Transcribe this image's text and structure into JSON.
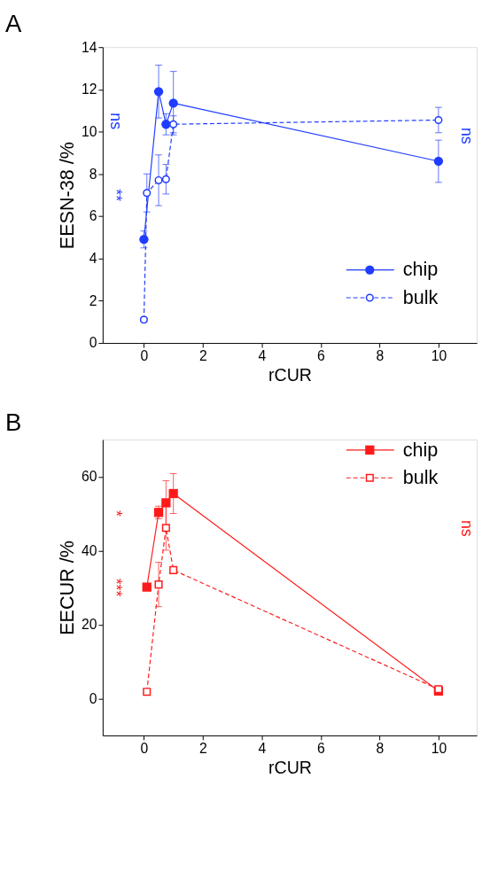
{
  "chart_data": [
    {
      "type": "line",
      "title": "A",
      "xlabel": "rCUR",
      "ylabel": "EESN-38 /%",
      "xlim": [
        -1.4,
        11.3
      ],
      "ylim": [
        0,
        14
      ],
      "xticks": [
        0,
        2,
        4,
        6,
        8,
        10
      ],
      "yticks": [
        0,
        2,
        4,
        6,
        8,
        10,
        12,
        14
      ],
      "grid": false,
      "legend": "bottom right",
      "marker": "circle",
      "series": [
        {
          "name": "chip",
          "color": "#1f3cff",
          "line_style": "solid",
          "x": [
            0,
            0.5,
            0.75,
            1,
            10
          ],
          "values": [
            4.9,
            11.9,
            10.35,
            11.35,
            8.6
          ],
          "errors": [
            0.4,
            1.25,
            0.5,
            1.5,
            1.0
          ]
        },
        {
          "name": "bulk",
          "color": "#1f3cff",
          "line_style": "dashed",
          "x": [
            0,
            0.1,
            0.5,
            0.75,
            1,
            10
          ],
          "values": [
            1.1,
            7.1,
            7.7,
            7.75,
            10.35,
            10.55
          ],
          "errors": [
            0.1,
            0.9,
            1.2,
            0.7,
            0.4,
            0.6
          ]
        }
      ],
      "annotations": [
        "ns",
        "**",
        "ns"
      ]
    },
    {
      "type": "line",
      "title": "B",
      "xlabel": "rCUR",
      "ylabel": "EECUR /%",
      "xlim": [
        -1.4,
        11.3
      ],
      "ylim": [
        -10,
        70
      ],
      "xticks": [
        0,
        2,
        4,
        6,
        8,
        10
      ],
      "yticks": [
        0,
        20,
        40,
        60
      ],
      "grid": false,
      "legend": "top right",
      "marker": "square",
      "series": [
        {
          "name": "chip",
          "color": "#ff1a1a",
          "line_style": "solid",
          "x": [
            0.1,
            0.5,
            0.75,
            1,
            10
          ],
          "values": [
            30.1,
            50.3,
            52.9,
            55.4,
            2.0
          ],
          "errors": [
            null,
            1.7,
            6,
            5.4,
            null
          ]
        },
        {
          "name": "bulk",
          "color": "#ff1a1a",
          "line_style": "dashed",
          "x": [
            0.1,
            0.5,
            0.75,
            1,
            10
          ],
          "values": [
            1.8,
            30.8,
            46.1,
            34.7,
            2.5
          ],
          "errors": [
            null,
            6,
            6,
            null,
            null
          ]
        }
      ],
      "annotations": [
        "*",
        "***",
        "ns"
      ]
    }
  ]
}
